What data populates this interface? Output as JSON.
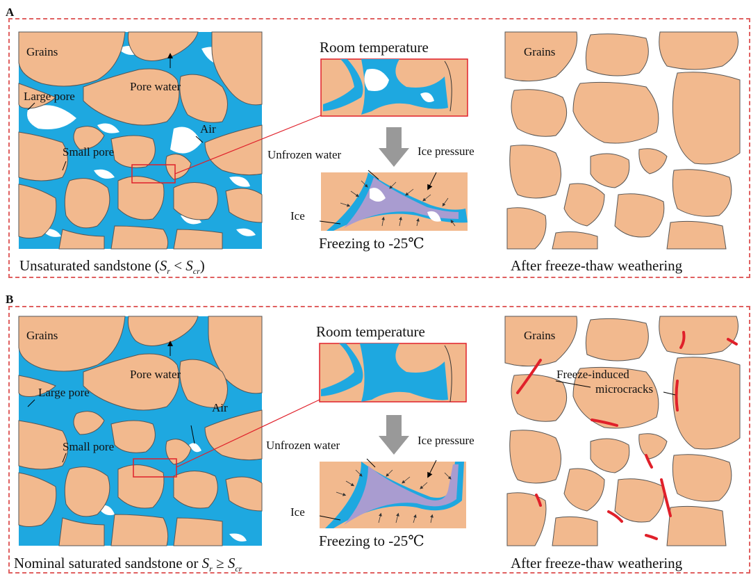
{
  "panels": [
    {
      "letter": "A",
      "labels": {
        "grains": "Grains",
        "large_pore": "Large pore",
        "pore_water": "Pore water",
        "air": "Air",
        "small_pore": "Small pore",
        "room_temperature": "Room temperature",
        "unfrozen_water": "Unfrozen water",
        "ice_pressure": "Ice pressure",
        "ice": "Ice",
        "freezing": "Freezing to -25℃",
        "grains_right": "Grains",
        "caption_left_prefix": "Unsaturated sandstone (",
        "caption_left_sr": "S",
        "caption_left_sr_sub": "r",
        "caption_left_op": " < ",
        "caption_left_scr": "S",
        "caption_left_scr_sub": "cr",
        "caption_left_suffix": ")",
        "caption_right": "After freeze-thaw weathering"
      }
    },
    {
      "letter": "B",
      "labels": {
        "grains": "Grains",
        "large_pore": "Large pore",
        "pore_water": "Pore water",
        "air": "Air",
        "small_pore": "Small pore",
        "room_temperature": "Room temperature",
        "unfrozen_water": "Unfrozen water",
        "ice_pressure": "Ice pressure",
        "ice": "Ice",
        "freezing": "Freezing to -25℃",
        "grains_right": "Grains",
        "microcracks_line1": "Freeze-induced",
        "microcracks_line2": "microcracks",
        "caption_left_prefix": "Nominal saturated sandstone or ",
        "caption_left_sr": "S",
        "caption_left_sr_sub": "r",
        "caption_left_op": " ≥ ",
        "caption_left_scr": "S",
        "caption_left_scr_sub": "cr",
        "caption_right": "After freeze-thaw weathering"
      }
    }
  ],
  "colors": {
    "grain": "#f2b98e",
    "water": "#1ea8e0",
    "ice": "#a99cd0",
    "crack": "#e0202a",
    "frame": "#e06060",
    "outline": "#555555"
  }
}
